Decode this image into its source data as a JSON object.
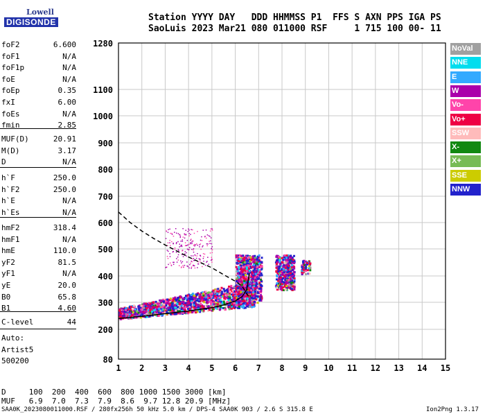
{
  "logo": {
    "top": "Lowell",
    "bottom": "DIGISONDE"
  },
  "header": {
    "line1": "Station YYYY DAY   DDD HHMMSS P1  FFS S AXN PPS IGA PS",
    "line2": "SaoLuis 2023 Mar21 080 011000 RSF     1 715 100 00- 11"
  },
  "params_1": [
    {
      "name": "foF2",
      "value": "6.600"
    },
    {
      "name": "foF1",
      "value": "N/A"
    },
    {
      "name": "foF1p",
      "value": "N/A"
    },
    {
      "name": "foE",
      "value": "N/A"
    },
    {
      "name": "foEp",
      "value": "0.35"
    },
    {
      "name": "fxI",
      "value": "6.00"
    },
    {
      "name": "foEs",
      "value": "N/A"
    },
    {
      "name": "fmin",
      "value": "2.85"
    }
  ],
  "params_2": [
    {
      "name": "MUF(D)",
      "value": "20.91"
    },
    {
      "name": "M(D)",
      "value": "3.17"
    },
    {
      "name": "D",
      "value": "N/A"
    }
  ],
  "params_3": [
    {
      "name": "h`F",
      "value": "250.0"
    },
    {
      "name": "h`F2",
      "value": "250.0"
    },
    {
      "name": "h`E",
      "value": "N/A"
    },
    {
      "name": "h`Es",
      "value": "N/A"
    }
  ],
  "params_4": [
    {
      "name": "hmF2",
      "value": "318.4"
    },
    {
      "name": "hmF1",
      "value": "N/A"
    },
    {
      "name": "hmE",
      "value": "110.0"
    },
    {
      "name": "yF2",
      "value": "81.5"
    },
    {
      "name": "yF1",
      "value": "N/A"
    },
    {
      "name": "yE",
      "value": "20.0"
    },
    {
      "name": "B0",
      "value": "65.8"
    },
    {
      "name": "B1",
      "value": "4.60"
    }
  ],
  "params_5": [
    {
      "name": "C-level",
      "value": "44"
    }
  ],
  "auto": [
    "Auto:",
    "Artist5",
    "500200"
  ],
  "legend": [
    {
      "label": "NoVal",
      "color": "#a0a0a0"
    },
    {
      "label": "NNE",
      "color": "#00ddee"
    },
    {
      "label": "E",
      "color": "#33aaff"
    },
    {
      "label": "W",
      "color": "#aa00aa"
    },
    {
      "label": "Vo-",
      "color": "#ff44aa"
    },
    {
      "label": "Vo+",
      "color": "#ee0044"
    },
    {
      "label": "SSW",
      "color": "#ffbbbb"
    },
    {
      "label": "X-",
      "color": "#118811"
    },
    {
      "label": "X+",
      "color": "#77bb55"
    },
    {
      "label": "SSE",
      "color": "#cccc00"
    },
    {
      "label": "NNW",
      "color": "#2222cc"
    }
  ],
  "bottom": {
    "row1": "D     100  200  400  600  800 1000 1500 3000 [km]",
    "row2": "MUF   6.9  7.0  7.3  7.9  8.6  9.7 12.8 20.9 [MHz]"
  },
  "footer": {
    "left": "SAA0K_2023080011000.RSF / 280fx256h 50 kHz 5.0 km / DPS-4 SAA0K 903 / 2.6 S 315.8 E",
    "right": "Ion2Png 1.3.17"
  },
  "chart_data": {
    "type": "scatter",
    "xlabel": "",
    "ylabel": "",
    "xlim": [
      1,
      15
    ],
    "ylim": [
      80,
      1280
    ],
    "x_ticks": [
      1,
      2,
      3,
      4,
      5,
      6,
      7,
      8,
      9,
      10,
      11,
      12,
      13,
      14,
      15
    ],
    "y_ticks": [
      80,
      200,
      300,
      400,
      500,
      600,
      700,
      800,
      900,
      1000,
      1100,
      1280
    ],
    "traces": [
      {
        "name": "h'F trace (lower)",
        "style": "solid",
        "x": [
          1.0,
          2.0,
          3.0,
          4.0,
          5.0,
          5.5,
          6.0,
          6.3,
          6.5,
          6.6
        ],
        "y": [
          240,
          248,
          258,
          268,
          280,
          290,
          305,
          322,
          350,
          410
        ]
      },
      {
        "name": "profile (dashed)",
        "style": "dashed",
        "x": [
          1.0,
          1.5,
          2.0,
          2.5,
          3.0,
          3.5,
          4.0,
          4.5,
          5.0,
          5.5,
          6.0,
          6.3,
          6.6
        ],
        "y": [
          640,
          600,
          568,
          540,
          515,
          492,
          470,
          450,
          430,
          405,
          380,
          360,
          318
        ]
      }
    ],
    "echo_regions": [
      {
        "x": [
          1.0,
          6.8
        ],
        "y": [
          240,
          330
        ]
      },
      {
        "x": [
          3.0,
          5.0
        ],
        "y": [
          430,
          580
        ]
      },
      {
        "x": [
          6.0,
          7.1
        ],
        "y": [
          300,
          480
        ]
      },
      {
        "x": [
          7.7,
          8.5
        ],
        "y": [
          350,
          480
        ]
      },
      {
        "x": [
          8.8,
          9.2
        ],
        "y": [
          410,
          460
        ]
      }
    ]
  }
}
